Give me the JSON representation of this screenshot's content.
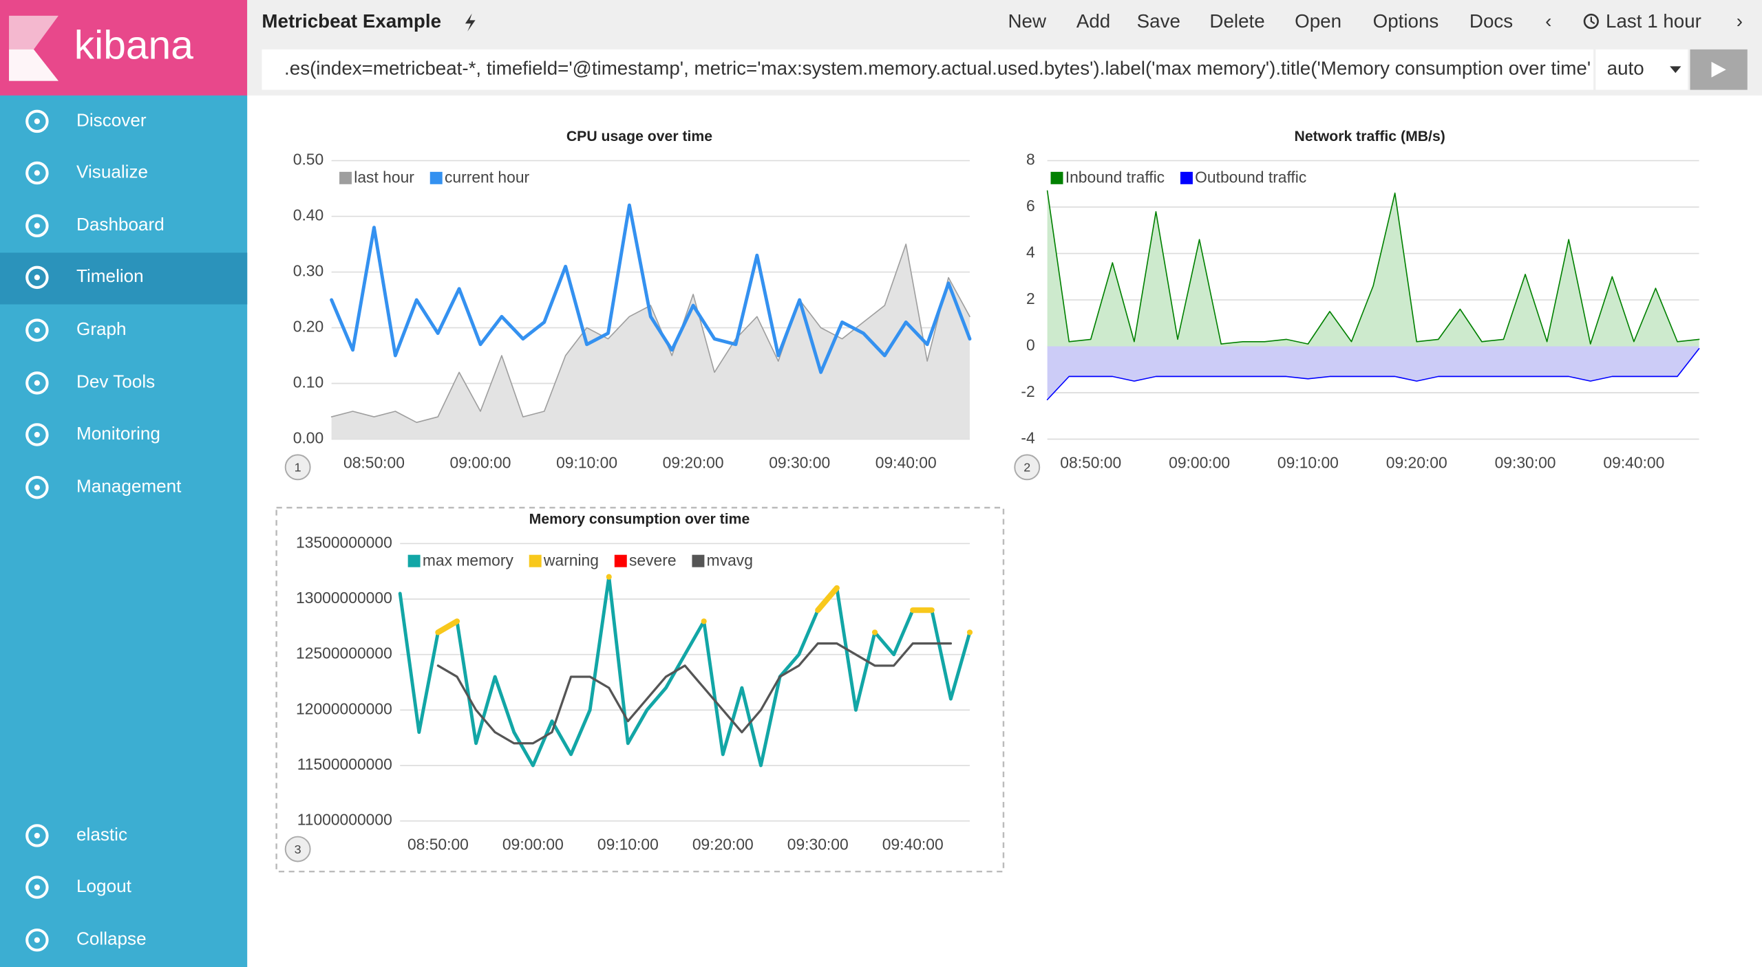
{
  "sidebar": {
    "brand": "kibana",
    "items": [
      "Discover",
      "Visualize",
      "Dashboard",
      "Timelion",
      "Graph",
      "Dev Tools",
      "Monitoring",
      "Management"
    ],
    "footer": [
      "elastic",
      "Logout",
      "Collapse"
    ]
  },
  "toolbar": {
    "title": "Metricbeat Example",
    "menu": [
      "New",
      "Add",
      "Save",
      "Delete",
      "Open",
      "Options",
      "Docs"
    ],
    "time": "Last 1 hour",
    "expression": ".es(index=metricbeat-*, timefield='@timestamp', metric='max:system.memory.actual.used.bytes').label('max memory').title('Memory consumption over time')",
    "interval": "auto"
  },
  "chart_data": [
    {
      "type": "line",
      "title": "CPU usage over time",
      "badge": "1",
      "legend": "top-left",
      "categories": [
        null,
        null,
        "08:50:00",
        null,
        null,
        null,
        null,
        "09:00:00",
        null,
        null,
        null,
        null,
        "09:10:00",
        null,
        null,
        null,
        null,
        "09:20:00",
        null,
        null,
        null,
        null,
        "09:30:00",
        null,
        null,
        null,
        null,
        "09:40:00",
        null,
        null,
        null
      ],
      "ylim": [
        0,
        0.5
      ],
      "yticks": [
        {
          "value": 0,
          "label": "0.00"
        },
        {
          "value": 0.1,
          "label": "0.10"
        },
        {
          "value": 0.2,
          "label": "0.20"
        },
        {
          "value": 0.3,
          "label": "0.30"
        },
        {
          "value": 0.4,
          "label": "0.40"
        },
        {
          "value": 0.5,
          "label": "0.50"
        }
      ],
      "grid": true,
      "series": [
        {
          "name": "last hour",
          "color": "#9e9e9e",
          "fill": "#e3e3e3",
          "width": 1,
          "values": [
            0.04,
            0.05,
            0.04,
            0.05,
            0.03,
            0.04,
            0.12,
            0.05,
            0.15,
            0.04,
            0.05,
            0.15,
            0.2,
            0.18,
            0.22,
            0.24,
            0.15,
            0.26,
            0.12,
            0.18,
            0.22,
            0.14,
            0.25,
            0.2,
            0.18,
            0.21,
            0.24,
            0.35,
            0.14,
            0.29,
            0.22
          ]
        },
        {
          "name": "current hour",
          "color": "#3491f0",
          "width": 3,
          "values": [
            0.25,
            0.16,
            0.38,
            0.15,
            0.25,
            0.19,
            0.27,
            0.17,
            0.22,
            0.18,
            0.21,
            0.31,
            0.17,
            0.19,
            0.42,
            0.22,
            0.16,
            0.24,
            0.18,
            0.17,
            0.33,
            0.15,
            0.25,
            0.12,
            0.21,
            0.19,
            0.15,
            0.21,
            0.17,
            0.28,
            0.18
          ]
        }
      ]
    },
    {
      "type": "line",
      "title": "Network traffic (MB/s)",
      "badge": "2",
      "legend": "top-left",
      "categories": [
        null,
        null,
        "08:50:00",
        null,
        null,
        null,
        null,
        "09:00:00",
        null,
        null,
        null,
        null,
        "09:10:00",
        null,
        null,
        null,
        null,
        "09:20:00",
        null,
        null,
        null,
        null,
        "09:30:00",
        null,
        null,
        null,
        null,
        "09:40:00",
        null,
        null,
        null
      ],
      "ylim": [
        -4,
        8
      ],
      "yticks": [
        -4,
        -2,
        0,
        2,
        4,
        6,
        8
      ],
      "grid": true,
      "series": [
        {
          "name": "Inbound traffic",
          "color": "#008000",
          "fill": "#cdeacd",
          "width": 1,
          "values": [
            6.7,
            0.2,
            0.3,
            3.6,
            0.2,
            5.8,
            0.3,
            4.6,
            0.1,
            0.2,
            0.2,
            0.3,
            0.1,
            1.5,
            0.2,
            2.6,
            6.6,
            0.2,
            0.3,
            1.6,
            0.2,
            0.3,
            3.1,
            0.2,
            4.6,
            0.1,
            3.0,
            0.2,
            2.5,
            0.2,
            0.3
          ]
        },
        {
          "name": "Outbound traffic",
          "color": "#0000ff",
          "fill": "#ccccf7",
          "width": 1,
          "values": [
            -2.3,
            -1.3,
            -1.3,
            -1.3,
            -1.5,
            -1.3,
            -1.3,
            -1.3,
            -1.3,
            -1.3,
            -1.3,
            -1.3,
            -1.4,
            -1.3,
            -1.3,
            -1.3,
            -1.3,
            -1.5,
            -1.3,
            -1.3,
            -1.3,
            -1.3,
            -1.3,
            -1.3,
            -1.3,
            -1.5,
            -1.3,
            -1.3,
            -1.3,
            -1.3,
            -0.1
          ]
        }
      ]
    },
    {
      "type": "line",
      "title": "Memory consumption over time",
      "badge": "3",
      "legend": "top-left",
      "categories": [
        null,
        null,
        "08:50:00",
        null,
        null,
        null,
        null,
        "09:00:00",
        null,
        null,
        null,
        null,
        "09:10:00",
        null,
        null,
        null,
        null,
        "09:20:00",
        null,
        null,
        null,
        null,
        "09:30:00",
        null,
        null,
        null,
        null,
        "09:40:00",
        null,
        null,
        null
      ],
      "ylim": [
        11000000000,
        13500000000
      ],
      "yticks": [
        11000000000,
        11500000000,
        12000000000,
        12500000000,
        13000000000,
        13500000000
      ],
      "grid": true,
      "series": [
        {
          "name": "max memory",
          "color": "#12a6a6",
          "width": 3,
          "values": [
            13050000000,
            11800000000,
            12700000000,
            12800000000,
            11700000000,
            12300000000,
            11800000000,
            11500000000,
            11900000000,
            11600000000,
            12000000000,
            13200000000,
            11700000000,
            12000000000,
            12200000000,
            12500000000,
            12800000000,
            11600000000,
            12200000000,
            11500000000,
            12300000000,
            12500000000,
            12900000000,
            13100000000,
            12000000000,
            12700000000,
            12500000000,
            12900000000,
            12900000000,
            12100000000,
            12700000000
          ]
        },
        {
          "name": "warning",
          "color": "#f8c81c",
          "width": 5,
          "values": [
            null,
            null,
            12700000000,
            12800000000,
            null,
            null,
            null,
            null,
            null,
            null,
            null,
            13200000000,
            null,
            null,
            null,
            null,
            12800000000,
            null,
            null,
            null,
            null,
            null,
            12900000000,
            13100000000,
            null,
            12700000000,
            null,
            12900000000,
            12900000000,
            null,
            12700000000
          ]
        },
        {
          "name": "severe",
          "color": "#ff0000",
          "width": 5,
          "values": [
            null,
            null,
            null,
            null,
            null,
            null,
            null,
            null,
            null,
            null,
            null,
            null,
            null,
            null,
            null,
            null,
            null,
            null,
            null,
            null,
            null,
            null,
            null,
            null,
            null,
            null,
            null,
            null,
            null,
            null,
            null
          ]
        },
        {
          "name": "mvavg",
          "color": "#555555",
          "width": 2,
          "values": [
            null,
            null,
            12400000000,
            12300000000,
            12000000000,
            11800000000,
            11700000000,
            11700000000,
            11800000000,
            12300000000,
            12300000000,
            12200000000,
            11900000000,
            12100000000,
            12300000000,
            12400000000,
            12200000000,
            12000000000,
            11800000000,
            12000000000,
            12300000000,
            12400000000,
            12600000000,
            12600000000,
            12500000000,
            12400000000,
            12400000000,
            12600000000,
            12600000000,
            12600000000,
            null
          ]
        }
      ]
    }
  ]
}
